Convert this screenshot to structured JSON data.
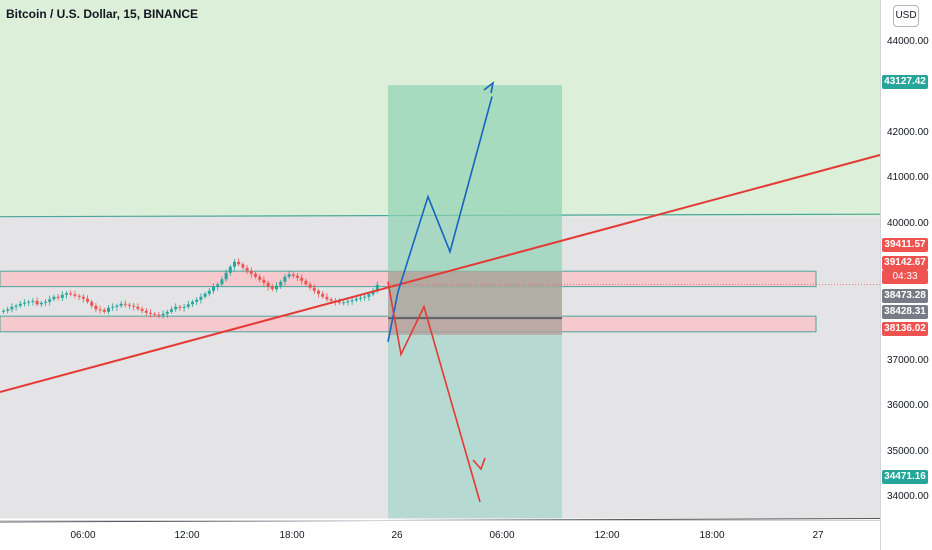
{
  "header": {
    "title": "Bitcoin / U.S. Dollar, 15, BINANCE",
    "currency_button": "USD"
  },
  "axes": {
    "y_ticks": [
      "44000.00",
      "42000.00",
      "41000.00",
      "40000.00",
      "37000.00",
      "36000.00",
      "35000.00",
      "34000.00"
    ],
    "x_ticks": [
      "06:00",
      "12:00",
      "18:00",
      "26",
      "06:00",
      "12:00",
      "18:00",
      "27"
    ]
  },
  "price_labels": {
    "target": "43127.42",
    "upper_level": "39411.57",
    "current_price": "39142.67",
    "countdown": "04:33",
    "avg_1": "38473.28",
    "avg_2": "38428.31",
    "stop": "38136.02",
    "bottom_level": "34471.16"
  },
  "colors": {
    "up": "#26a69a",
    "down": "#ef5350",
    "green_zone": "#dcefd9",
    "gray_zone": "#e4e4e6",
    "trendline": "#e53935",
    "arrow_up": "#1565c0",
    "arrow_down": "#e53935"
  },
  "chart_data": {
    "type": "candlestick",
    "title": "Bitcoin / U.S. Dollar, 15, BINANCE",
    "y_range": [
      33600,
      44500
    ],
    "close_series": [
      38620,
      38650,
      38700,
      38720,
      38760,
      38780,
      38800,
      38820,
      38750,
      38780,
      38800,
      38850,
      38900,
      38880,
      38940,
      38970,
      38950,
      38920,
      38900,
      38860,
      38800,
      38720,
      38650,
      38640,
      38600,
      38680,
      38700,
      38720,
      38760,
      38740,
      38720,
      38700,
      38660,
      38620,
      38580,
      38560,
      38540,
      38530,
      38560,
      38600,
      38650,
      38700,
      38680,
      38700,
      38750,
      38800,
      38840,
      38900,
      38960,
      39020,
      39100,
      39150,
      39250,
      39380,
      39500,
      39600,
      39550,
      39480,
      39420,
      39360,
      39300,
      39240,
      39180,
      39100,
      39050,
      39120,
      39200,
      39300,
      39350,
      39320,
      39280,
      39220,
      39150,
      39080,
      39020,
      38960,
      38900,
      38850,
      38820,
      38800,
      38780,
      38790,
      38810,
      38830,
      38860,
      38880,
      38900,
      38950,
      39020,
      39140
    ]
  }
}
